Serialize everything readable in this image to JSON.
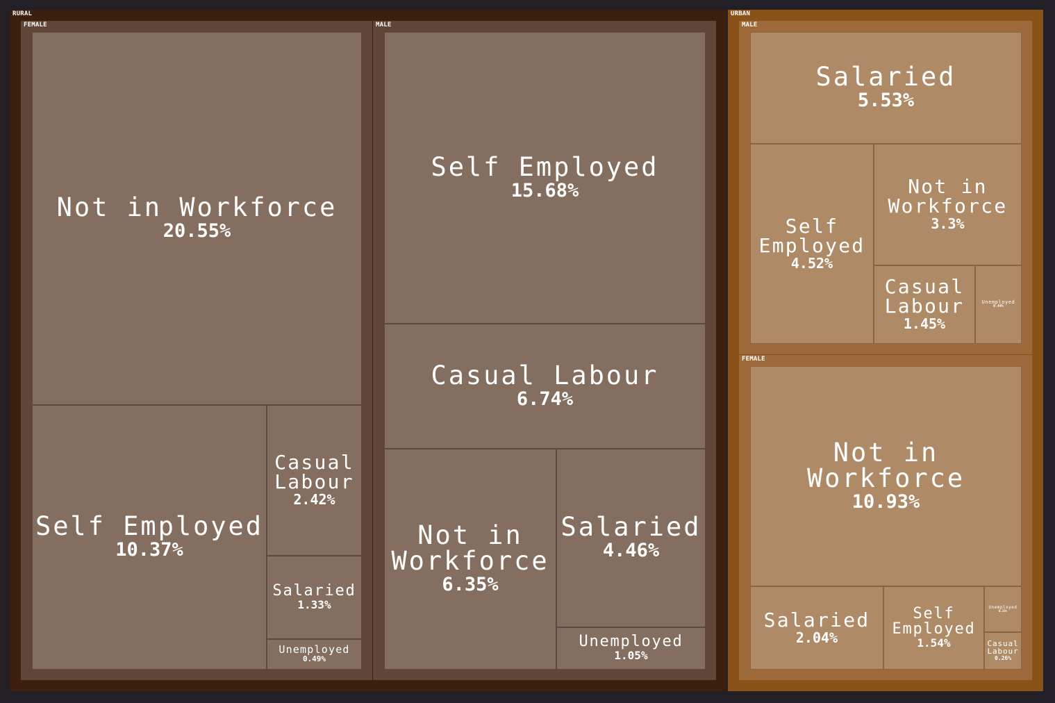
{
  "chart_data": {
    "type": "treemap",
    "title": "",
    "colors": {
      "background": "#222026",
      "rural_outer": "#3d1f0e",
      "rural_inner": "#5f4637",
      "rural_leaf": "#836e60",
      "urban_outer": "#8a5218",
      "urban_inner": "#9e6a3b",
      "urban_leaf": "#ae8a66"
    },
    "groups": [
      {
        "name": "RURAL",
        "subgroups": [
          {
            "name": "FEMALE",
            "leaves": [
              {
                "name": "Not in Workforce",
                "lines": [
                  "Not in Workforce"
                ],
                "value_label": "20.55%",
                "value": 20.55
              },
              {
                "name": "Self Employed",
                "lines": [
                  "Self Employed"
                ],
                "value_label": "10.37%",
                "value": 10.37
              },
              {
                "name": "Casual Labour",
                "lines": [
                  "Casual",
                  "Labour"
                ],
                "value_label": "2.42%",
                "value": 2.42
              },
              {
                "name": "Salaried",
                "lines": [
                  "Salaried"
                ],
                "value_label": "1.33%",
                "value": 1.33
              },
              {
                "name": "Unemployed",
                "lines": [
                  "Unemployed"
                ],
                "value_label": "0.49%",
                "value": 0.49
              }
            ]
          },
          {
            "name": "MALE",
            "leaves": [
              {
                "name": "Self Employed",
                "lines": [
                  "Self Employed"
                ],
                "value_label": "15.68%",
                "value": 15.68
              },
              {
                "name": "Casual Labour",
                "lines": [
                  "Casual Labour"
                ],
                "value_label": "6.74%",
                "value": 6.74
              },
              {
                "name": "Not in Workforce",
                "lines": [
                  "Not in",
                  "Workforce"
                ],
                "value_label": "6.35%",
                "value": 6.35
              },
              {
                "name": "Salaried",
                "lines": [
                  "Salaried"
                ],
                "value_label": "4.46%",
                "value": 4.46
              },
              {
                "name": "Unemployed",
                "lines": [
                  "Unemployed"
                ],
                "value_label": "1.05%",
                "value": 1.05
              }
            ]
          }
        ]
      },
      {
        "name": "URBAN",
        "subgroups": [
          {
            "name": "MALE",
            "leaves": [
              {
                "name": "Salaried",
                "lines": [
                  "Salaried"
                ],
                "value_label": "5.53%",
                "value": 5.53
              },
              {
                "name": "Self Employed",
                "lines": [
                  "Self",
                  "Employed"
                ],
                "value_label": "4.52%",
                "value": 4.52
              },
              {
                "name": "Not in Workforce",
                "lines": [
                  "Not in",
                  "Workforce"
                ],
                "value_label": "3.3%",
                "value": 3.3
              },
              {
                "name": "Casual Labour",
                "lines": [
                  "Casual",
                  "Labour"
                ],
                "value_label": "1.45%",
                "value": 1.45
              },
              {
                "name": "Unemployed",
                "lines": [
                  "Unemployed"
                ],
                "value_label": "0.44%",
                "value": 0.44
              }
            ]
          },
          {
            "name": "FEMALE",
            "leaves": [
              {
                "name": "Not in Workforce",
                "lines": [
                  "Not in Workforce"
                ],
                "value_label": "10.93%",
                "value": 10.93
              },
              {
                "name": "Salaried",
                "lines": [
                  "Salaried"
                ],
                "value_label": "2.04%",
                "value": 2.04
              },
              {
                "name": "Self Employed",
                "lines": [
                  "Self",
                  "Employed"
                ],
                "value_label": "1.54%",
                "value": 1.54
              },
              {
                "name": "Unemployed",
                "lines": [
                  "Unemployed"
                ],
                "value_label": "0.33%",
                "value": 0.33
              },
              {
                "name": "Casual Labour",
                "lines": [
                  "Casual",
                  "Labour"
                ],
                "value_label": "0.26%",
                "value": 0.26
              }
            ]
          }
        ]
      }
    ]
  }
}
